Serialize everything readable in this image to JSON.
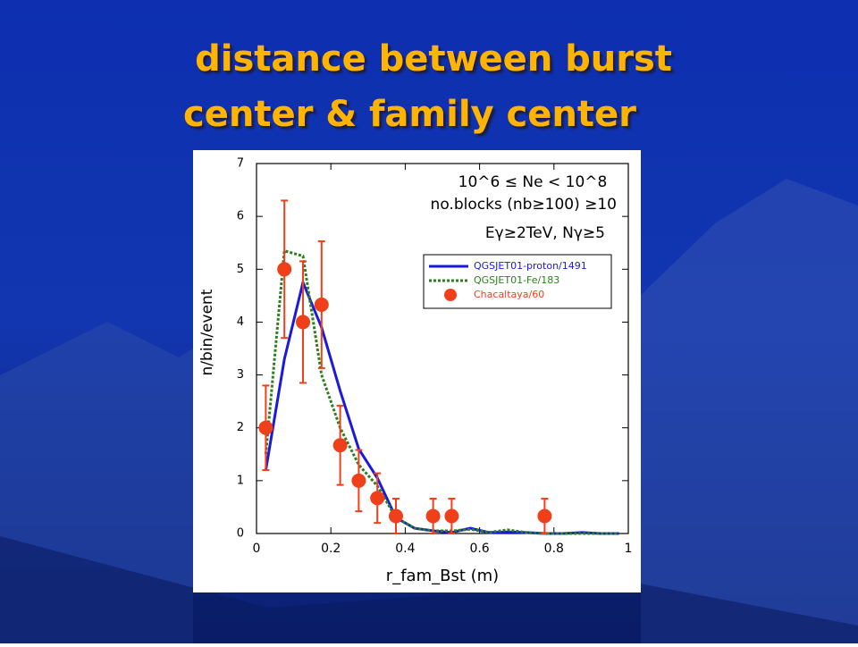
{
  "chart_data": {
    "type": "line",
    "title": [
      "distance between burst",
      "center & family center"
    ],
    "xlabel": "r_fam_Bst (m)",
    "ylabel": "n/bin/event",
    "annotations": [
      "10^6 ≤ Ne < 10^8",
      "no.blocks (nb≥100) ≥10",
      "Eγ≥2TeV, Nγ≥5"
    ],
    "xlim": [
      0,
      1
    ],
    "ylim": [
      0,
      7
    ],
    "xticks": [
      0,
      0.2,
      0.4,
      0.6,
      0.8,
      1
    ],
    "yticks": [
      0,
      1,
      2,
      3,
      4,
      5,
      6,
      7
    ],
    "series": [
      {
        "name": "QGSJET01-proton/1491",
        "color": "#1a1adc",
        "style": "solid",
        "x": [
          0.025,
          0.075,
          0.125,
          0.175,
          0.225,
          0.275,
          0.325,
          0.375,
          0.425,
          0.475,
          0.525,
          0.575,
          0.625,
          0.675,
          0.725,
          0.775,
          0.825,
          0.875,
          0.925,
          0.975
        ],
        "values": [
          1.2,
          3.3,
          4.75,
          3.9,
          2.7,
          1.6,
          1.05,
          0.3,
          0.1,
          0.05,
          0.02,
          0.1,
          0.02,
          0.03,
          0.02,
          0,
          0,
          0.02,
          0,
          0
        ]
      },
      {
        "name": "QGSJET01-Fe/183",
        "color": "#2e7d1e",
        "style": "dashed",
        "x": [
          0.025,
          0.075,
          0.125,
          0.175,
          0.225,
          0.275,
          0.325,
          0.375,
          0.425,
          0.475,
          0.525,
          0.575,
          0.625,
          0.675,
          0.725,
          0.775,
          0.825,
          0.875,
          0.925,
          0.975
        ],
        "values": [
          1.5,
          5.35,
          5.25,
          3.0,
          2.0,
          1.3,
          0.9,
          0.3,
          0.1,
          0.05,
          0.05,
          0.08,
          0.02,
          0.07,
          0.02,
          0,
          0,
          0,
          0,
          0
        ]
      },
      {
        "name": "Chacaltaya/60",
        "color": "#f0401a",
        "style": "points",
        "x": [
          0.025,
          0.075,
          0.125,
          0.175,
          0.225,
          0.275,
          0.325,
          0.375,
          0.475,
          0.525,
          0.775
        ],
        "values": [
          2,
          5,
          4,
          4.33,
          1.67,
          1.0,
          0.67,
          0.33,
          0.33,
          0.33,
          0.33
        ],
        "errors": [
          0.8,
          1.3,
          1.15,
          1.2,
          0.75,
          0.58,
          0.47,
          0.33,
          0.33,
          0.33,
          0.33
        ]
      }
    ]
  }
}
